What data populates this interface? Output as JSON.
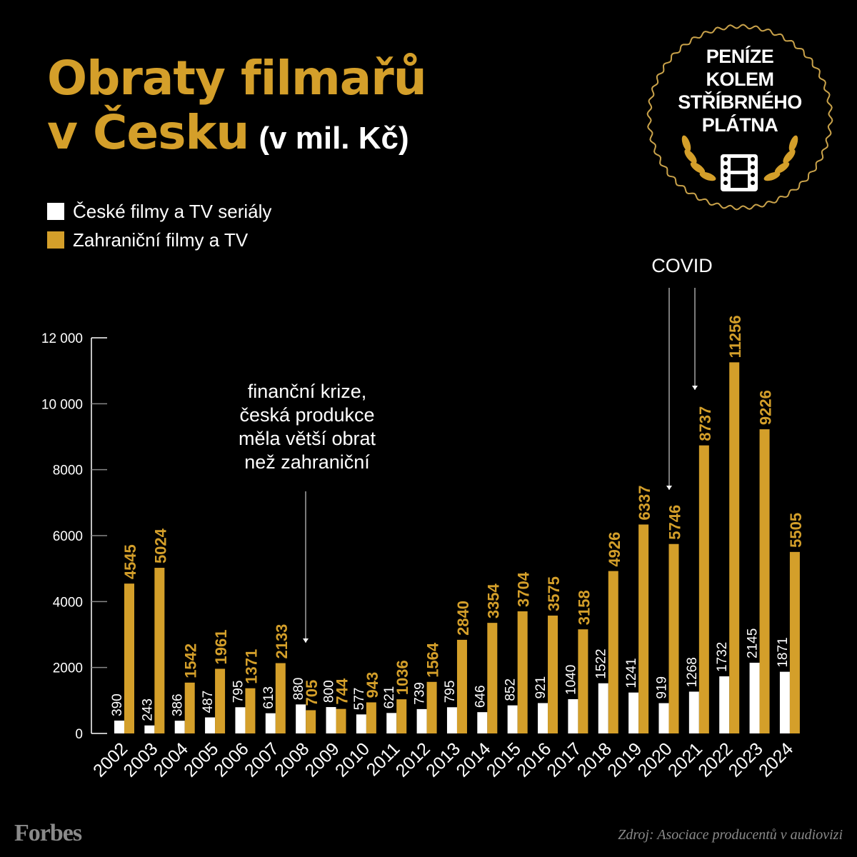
{
  "title_line1": "Obraty filmařů",
  "title_line2": "v Česku",
  "title_unit": "(v mil. Kč)",
  "badge": {
    "lines": [
      "PENÍZE",
      "KOLEM",
      "STŘÍBRNÉHO",
      "PLÁTNA"
    ],
    "icon": "film-strip-icon"
  },
  "annotations": {
    "crisis": [
      "finanční krize,",
      "česká produkce",
      "měla větší obrat",
      "než zahraniční"
    ],
    "covid": "COVID"
  },
  "footer": {
    "logo": "Forbes",
    "source": "Zdroj: Asociace producentů v audiovizi"
  },
  "colors": {
    "czech": "#ffffff",
    "foreign": "#d49f2a",
    "background": "#000000"
  },
  "chart_data": {
    "type": "bar",
    "title": "Obraty filmařů v Česku (v mil. Kč)",
    "legend_position": "top-left",
    "categories": [
      "2002",
      "2003",
      "2004",
      "2005",
      "2006",
      "2007",
      "2008",
      "2009",
      "2010",
      "2011",
      "2012",
      "2013",
      "2014",
      "2015",
      "2016",
      "2017",
      "2018",
      "2019",
      "2020",
      "2021",
      "2022",
      "2023",
      "2024"
    ],
    "series": [
      {
        "name": "České filmy a TV seriály",
        "values": [
          390,
          243,
          386,
          487,
          795,
          613,
          880,
          800,
          577,
          621,
          739,
          795,
          646,
          852,
          921,
          1040,
          1522,
          1241,
          919,
          1268,
          1732,
          2145,
          1871
        ]
      },
      {
        "name": "Zahraniční filmy a TV",
        "values": [
          4545,
          5024,
          1542,
          1961,
          1371,
          2133,
          705,
          744,
          943,
          1036,
          1564,
          2840,
          3354,
          3704,
          3575,
          3158,
          4926,
          6337,
          5746,
          8737,
          11256,
          9226,
          5505
        ]
      }
    ],
    "ylim": [
      0,
      12000
    ],
    "yticks": [
      0,
      2000,
      4000,
      6000,
      8000,
      10000,
      12000
    ],
    "ytick_labels": [
      "0",
      "2000",
      "4000",
      "6000",
      "8000",
      "10 000",
      "12 000"
    ]
  }
}
